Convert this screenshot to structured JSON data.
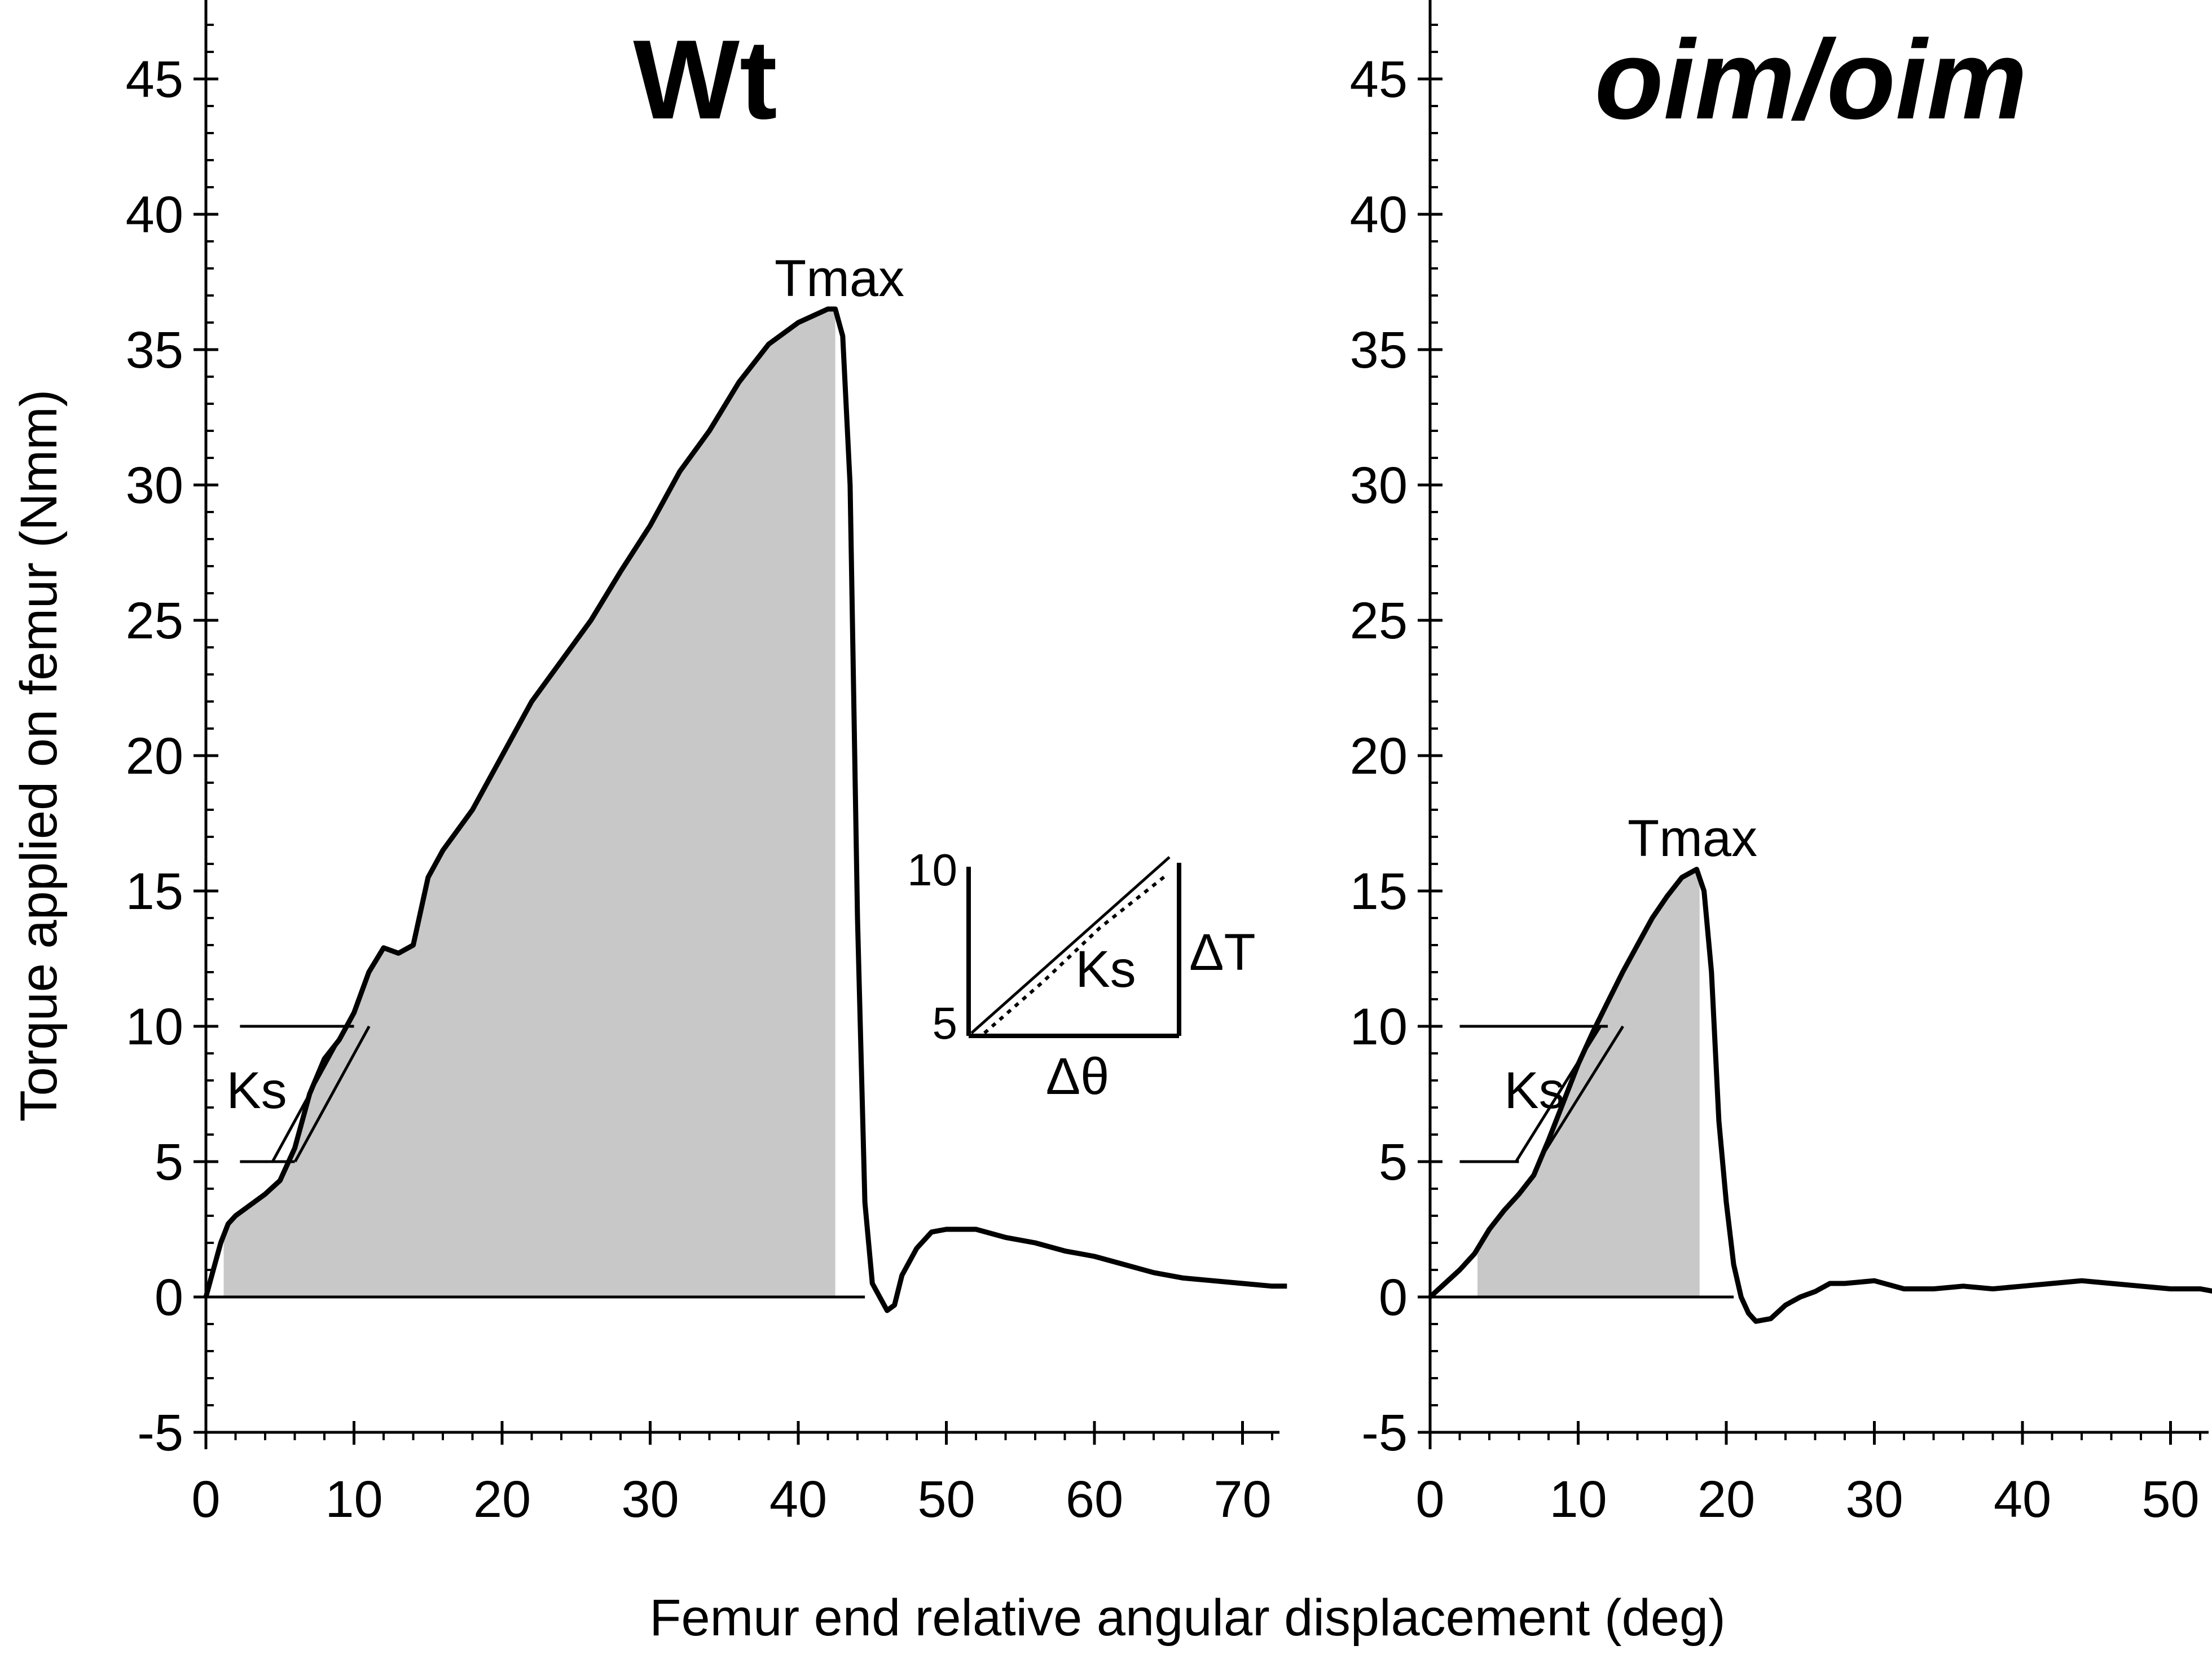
{
  "chart_data": {
    "type": "line",
    "xlabel": "Femur end relative angular displacement (deg)",
    "ylabel": "Torque applied on femur (Nmm)",
    "ylim": [
      -5,
      47
    ],
    "yticks": [
      -5,
      0,
      5,
      10,
      15,
      20,
      25,
      30,
      35,
      40,
      45
    ],
    "grid": false,
    "panels": [
      {
        "title": "Wt",
        "title_italic": false,
        "xlim": [
          0,
          73
        ],
        "xticks": [
          0,
          10,
          20,
          30,
          40,
          50,
          60,
          70
        ],
        "peak_label": "Tmax",
        "ks_label": "Ks",
        "ks_lines": [
          5,
          10
        ],
        "shaded_range": [
          1.2,
          42.5
        ],
        "shading_color": "#c8c8c8",
        "series": [
          {
            "x": [
              0,
              0.5,
              1,
              1.5,
              2,
              3,
              4,
              5,
              6,
              7,
              8,
              9,
              10,
              11,
              12,
              13,
              14,
              15,
              16,
              18,
              20,
              22,
              24,
              26,
              28,
              30,
              32,
              34,
              36,
              38,
              40,
              42,
              42.5,
              43,
              43.5,
              44,
              44.5,
              45,
              45.5,
              46,
              46.5,
              47,
              48,
              49,
              50,
              52,
              54,
              56,
              58,
              60,
              62,
              64,
              66,
              68,
              70,
              72,
              73
            ],
            "y": [
              0,
              1,
              2,
              2.7,
              3,
              3.4,
              3.8,
              4.3,
              5.5,
              7.5,
              8.8,
              9.5,
              10.5,
              12,
              12.9,
              12.7,
              13,
              15.5,
              16.5,
              18,
              20,
              22,
              23.5,
              25,
              26.8,
              28.5,
              30.5,
              32,
              33.8,
              35.2,
              36,
              36.5,
              36.5,
              35.5,
              30,
              14,
              3.5,
              0.5,
              0,
              -0.5,
              -0.3,
              0.8,
              1.8,
              2.4,
              2.5,
              2.5,
              2.2,
              2,
              1.7,
              1.5,
              1.2,
              0.9,
              0.7,
              0.6,
              0.5,
              0.4,
              0.4
            ]
          }
        ],
        "inset": {
          "y_ticks": [
            "10",
            "5"
          ],
          "ks_label": "Ks",
          "dtheta_label": "Δθ",
          "dt_label": "ΔT"
        }
      },
      {
        "title": "oim/oim",
        "title_italic": true,
        "xlim": [
          0,
          53
        ],
        "xticks": [
          0,
          10,
          20,
          30,
          40,
          50
        ],
        "peak_label": "Tmax",
        "ks_label": "Ks",
        "ks_lines": [
          5,
          10
        ],
        "shaded_range": [
          3.2,
          18.2
        ],
        "shading_color": "#c8c8c8",
        "series": [
          {
            "x": [
              0,
              1,
              2,
              3,
              4,
              5,
              6,
              7,
              8,
              9,
              10,
              11,
              12,
              13,
              14,
              15,
              16,
              17,
              18,
              18.5,
              19,
              19.5,
              20,
              20.5,
              21,
              21.5,
              22,
              23,
              24,
              25,
              26,
              27,
              28,
              30,
              32,
              34,
              36,
              38,
              40,
              42,
              44,
              46,
              48,
              50,
              52,
              53
            ],
            "y": [
              0,
              0.5,
              1,
              1.6,
              2.5,
              3.2,
              3.8,
              4.5,
              5.8,
              7.2,
              8.6,
              9.8,
              10.9,
              12,
              13,
              14,
              14.8,
              15.5,
              15.8,
              15,
              12,
              6.5,
              3.5,
              1.2,
              0,
              -0.6,
              -0.9,
              -0.8,
              -0.3,
              0,
              0.2,
              0.5,
              0.5,
              0.6,
              0.3,
              0.3,
              0.4,
              0.3,
              0.4,
              0.5,
              0.6,
              0.5,
              0.4,
              0.3,
              0.3,
              0.2
            ]
          }
        ]
      }
    ]
  }
}
